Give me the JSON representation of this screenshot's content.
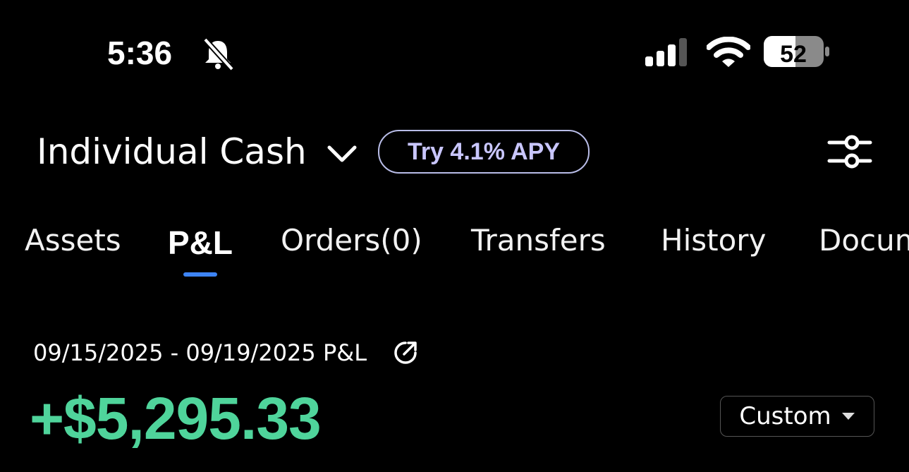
{
  "status_bar": {
    "time": "5:36",
    "battery": "52"
  },
  "header": {
    "account": "Individual Cash",
    "promo": "Try 4.1% APY"
  },
  "tabs": [
    "Assets",
    "P&L",
    "Orders(0)",
    "Transfers",
    "History",
    "Documents"
  ],
  "pnl": {
    "period": "09/15/2025 - 09/19/2025 P&L",
    "amount": "+$5,295.33",
    "range_button": "Custom"
  }
}
